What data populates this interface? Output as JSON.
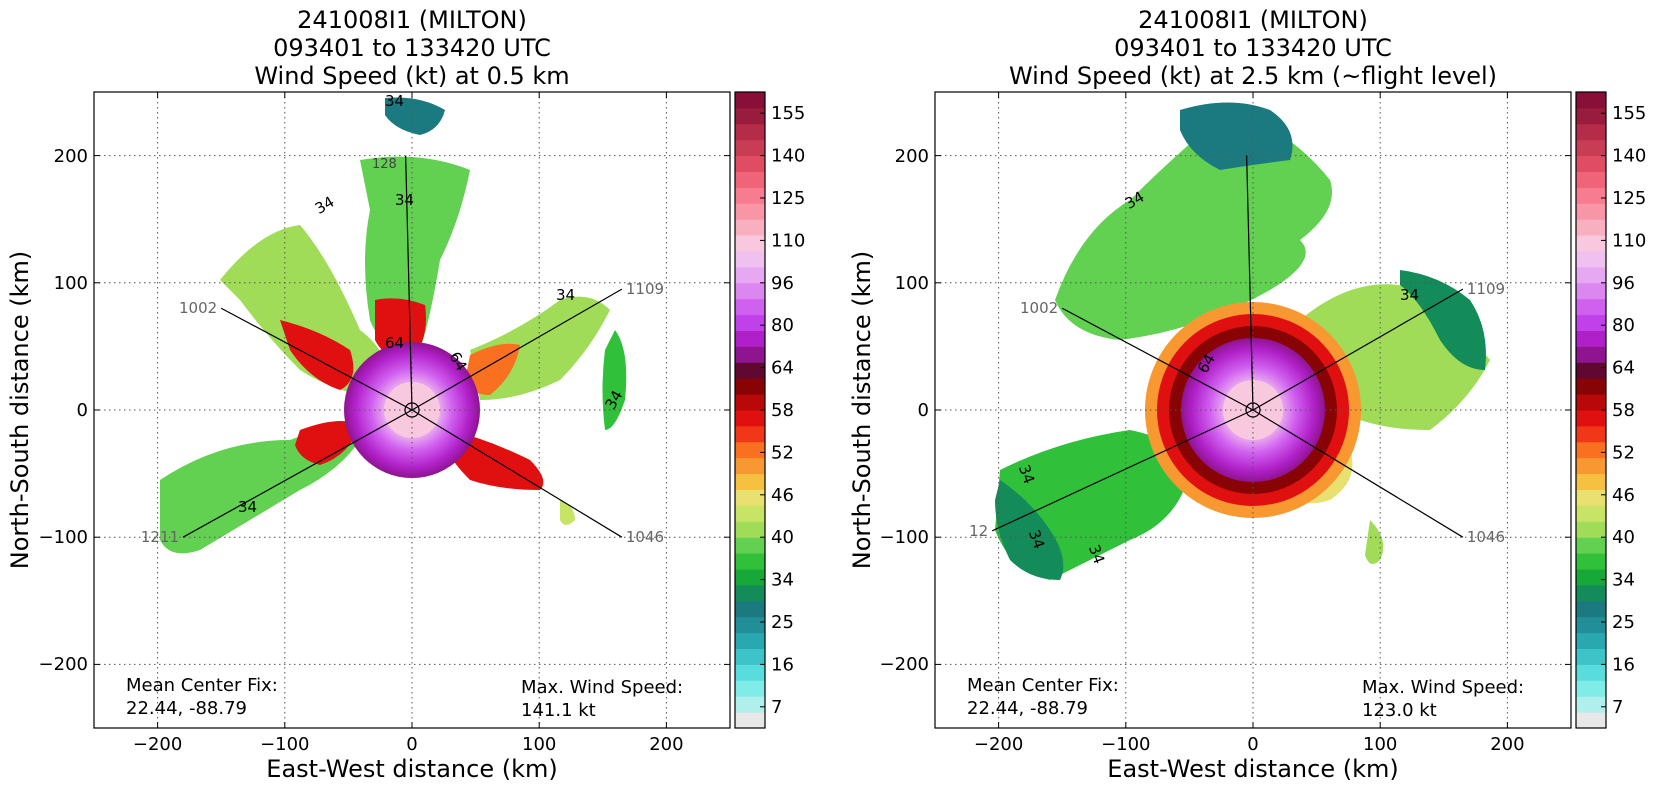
{
  "colorbar": {
    "colors": [
      "#e8e8e8",
      "#b0f0ec",
      "#80ece8",
      "#58dcdc",
      "#3cc4c8",
      "#2aa8b0",
      "#218e98",
      "#1a7a80",
      "#138c5a",
      "#16a838",
      "#30c03a",
      "#62d050",
      "#a0dc58",
      "#c8e464",
      "#e8e070",
      "#f6c040",
      "#f89830",
      "#f87020",
      "#f03818",
      "#e01010",
      "#b80808",
      "#880404",
      "#600830",
      "#8e1490",
      "#b020c8",
      "#c040ea",
      "#d060f0",
      "#dc86f0",
      "#e6a8f2",
      "#f0c0f0",
      "#f8c8de",
      "#f8b0c0",
      "#f896a8",
      "#f87c90",
      "#f06478",
      "#e04c62",
      "#c83c54",
      "#b42c48",
      "#9a1c3c",
      "#881038"
    ],
    "tick_labels": [
      "7",
      "16",
      "25",
      "34",
      "40",
      "46",
      "52",
      "58",
      "64",
      "80",
      "96",
      "110",
      "125",
      "140",
      "155"
    ]
  },
  "chart_data": [
    {
      "type": "heatmap",
      "title": [
        "241008I1 (MILTON)",
        "093401 to 133420 UTC",
        "Wind Speed (kt) at 0.5 km"
      ],
      "xlabel": "East-West distance (km)",
      "ylabel": "North-South distance (km)",
      "xlim": [
        -250,
        250
      ],
      "ylim": [
        -250,
        250
      ],
      "xticks": [
        -200,
        -100,
        0,
        100,
        200
      ],
      "yticks": [
        -200,
        -100,
        0,
        100,
        200
      ],
      "tick_labels": [
        "−200",
        "−100",
        "0",
        "100",
        "200"
      ],
      "grid": true,
      "colorbar_range_kt": [
        7,
        155
      ],
      "center_fix_label": "Mean Center Fix:",
      "center_fix_value": "22.44, -88.79",
      "max_wind_label": "Max. Wind Speed:",
      "max_wind_value": "141.1 kt",
      "max_wind_kt": 141.1,
      "flight_legs": [
        {
          "label": "1002",
          "start": [
            -150,
            80
          ],
          "end": [
            0,
            0
          ]
        },
        {
          "label": "1109",
          "start": [
            165,
            95
          ],
          "end": [
            0,
            0
          ]
        },
        {
          "label": "1046",
          "start": [
            165,
            -100
          ],
          "end": [
            0,
            0
          ]
        },
        {
          "label": "1211",
          "start": [
            -180,
            -100
          ],
          "end": [
            0,
            0
          ]
        },
        {
          "label": "",
          "start": [
            -5,
            200
          ],
          "end": [
            0,
            0
          ]
        }
      ],
      "contour_labels": [
        "34",
        "34",
        "34",
        "34",
        "34",
        "34",
        "64",
        "64",
        "128"
      ]
    },
    {
      "type": "heatmap",
      "title": [
        "241008I1 (MILTON)",
        "093401 to 133420 UTC",
        "Wind Speed (kt) at 2.5 km (~flight level)"
      ],
      "xlabel": "East-West distance (km)",
      "ylabel": "North-South distance (km)",
      "xlim": [
        -250,
        250
      ],
      "ylim": [
        -250,
        250
      ],
      "xticks": [
        -200,
        -100,
        0,
        100,
        200
      ],
      "yticks": [
        -200,
        -100,
        0,
        100,
        200
      ],
      "tick_labels": [
        "−200",
        "−100",
        "0",
        "100",
        "200"
      ],
      "grid": true,
      "colorbar_range_kt": [
        7,
        155
      ],
      "center_fix_label": "Mean Center Fix:",
      "center_fix_value": "22.44, -88.79",
      "max_wind_label": "Max. Wind Speed:",
      "max_wind_value": "123.0 kt",
      "max_wind_kt": 123.0,
      "flight_legs": [
        {
          "label": "1002",
          "start": [
            -150,
            80
          ],
          "end": [
            0,
            0
          ]
        },
        {
          "label": "1109",
          "start": [
            165,
            95
          ],
          "end": [
            0,
            0
          ]
        },
        {
          "label": "1046",
          "start": [
            165,
            -100
          ],
          "end": [
            0,
            0
          ]
        },
        {
          "label": "12",
          "start": [
            -205,
            -95
          ],
          "end": [
            0,
            0
          ]
        },
        {
          "label": "",
          "start": [
            -5,
            200
          ],
          "end": [
            0,
            0
          ]
        }
      ],
      "contour_labels": [
        "34",
        "34",
        "34",
        "34",
        "34",
        "64"
      ]
    }
  ]
}
